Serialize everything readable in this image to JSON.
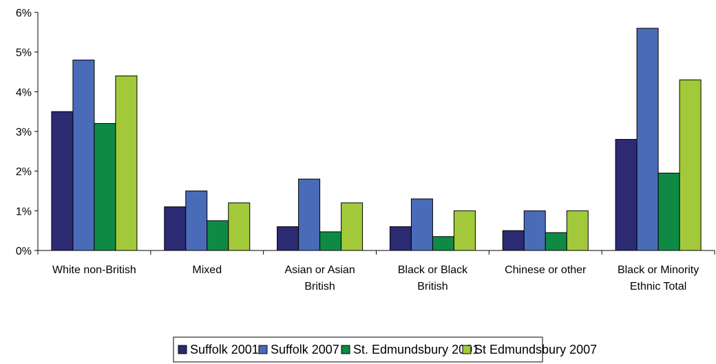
{
  "chart_data": {
    "type": "bar",
    "title": "",
    "xlabel": "",
    "ylabel": "",
    "ylim": [
      0,
      6
    ],
    "y_ticks": [
      "0%",
      "1%",
      "2%",
      "3%",
      "4%",
      "5%",
      "6%"
    ],
    "categories": [
      [
        "White non-British"
      ],
      [
        "Mixed"
      ],
      [
        "Asian or Asian",
        "British"
      ],
      [
        "Black or Black",
        "British"
      ],
      [
        "Chinese or other"
      ],
      [
        "Black or Minority",
        "Ethnic Total"
      ]
    ],
    "series": [
      {
        "name": "Suffolk 2001",
        "color": "#2B2A73",
        "values": [
          3.5,
          1.1,
          0.6,
          0.6,
          0.5,
          2.8
        ]
      },
      {
        "name": "Suffolk 2007",
        "color": "#4A6BB8",
        "values": [
          4.8,
          1.5,
          1.8,
          1.3,
          1.0,
          5.6
        ]
      },
      {
        "name": "St. Edmundsbury 2001",
        "color": "#0F8A45",
        "values": [
          3.2,
          0.75,
          0.47,
          0.35,
          0.45,
          1.95
        ]
      },
      {
        "name": "St Edmundsbury 2007",
        "color": "#A2C93A",
        "values": [
          4.4,
          1.2,
          1.2,
          1.0,
          1.0,
          4.3
        ]
      }
    ],
    "grid": false,
    "legend_position": "bottom"
  }
}
